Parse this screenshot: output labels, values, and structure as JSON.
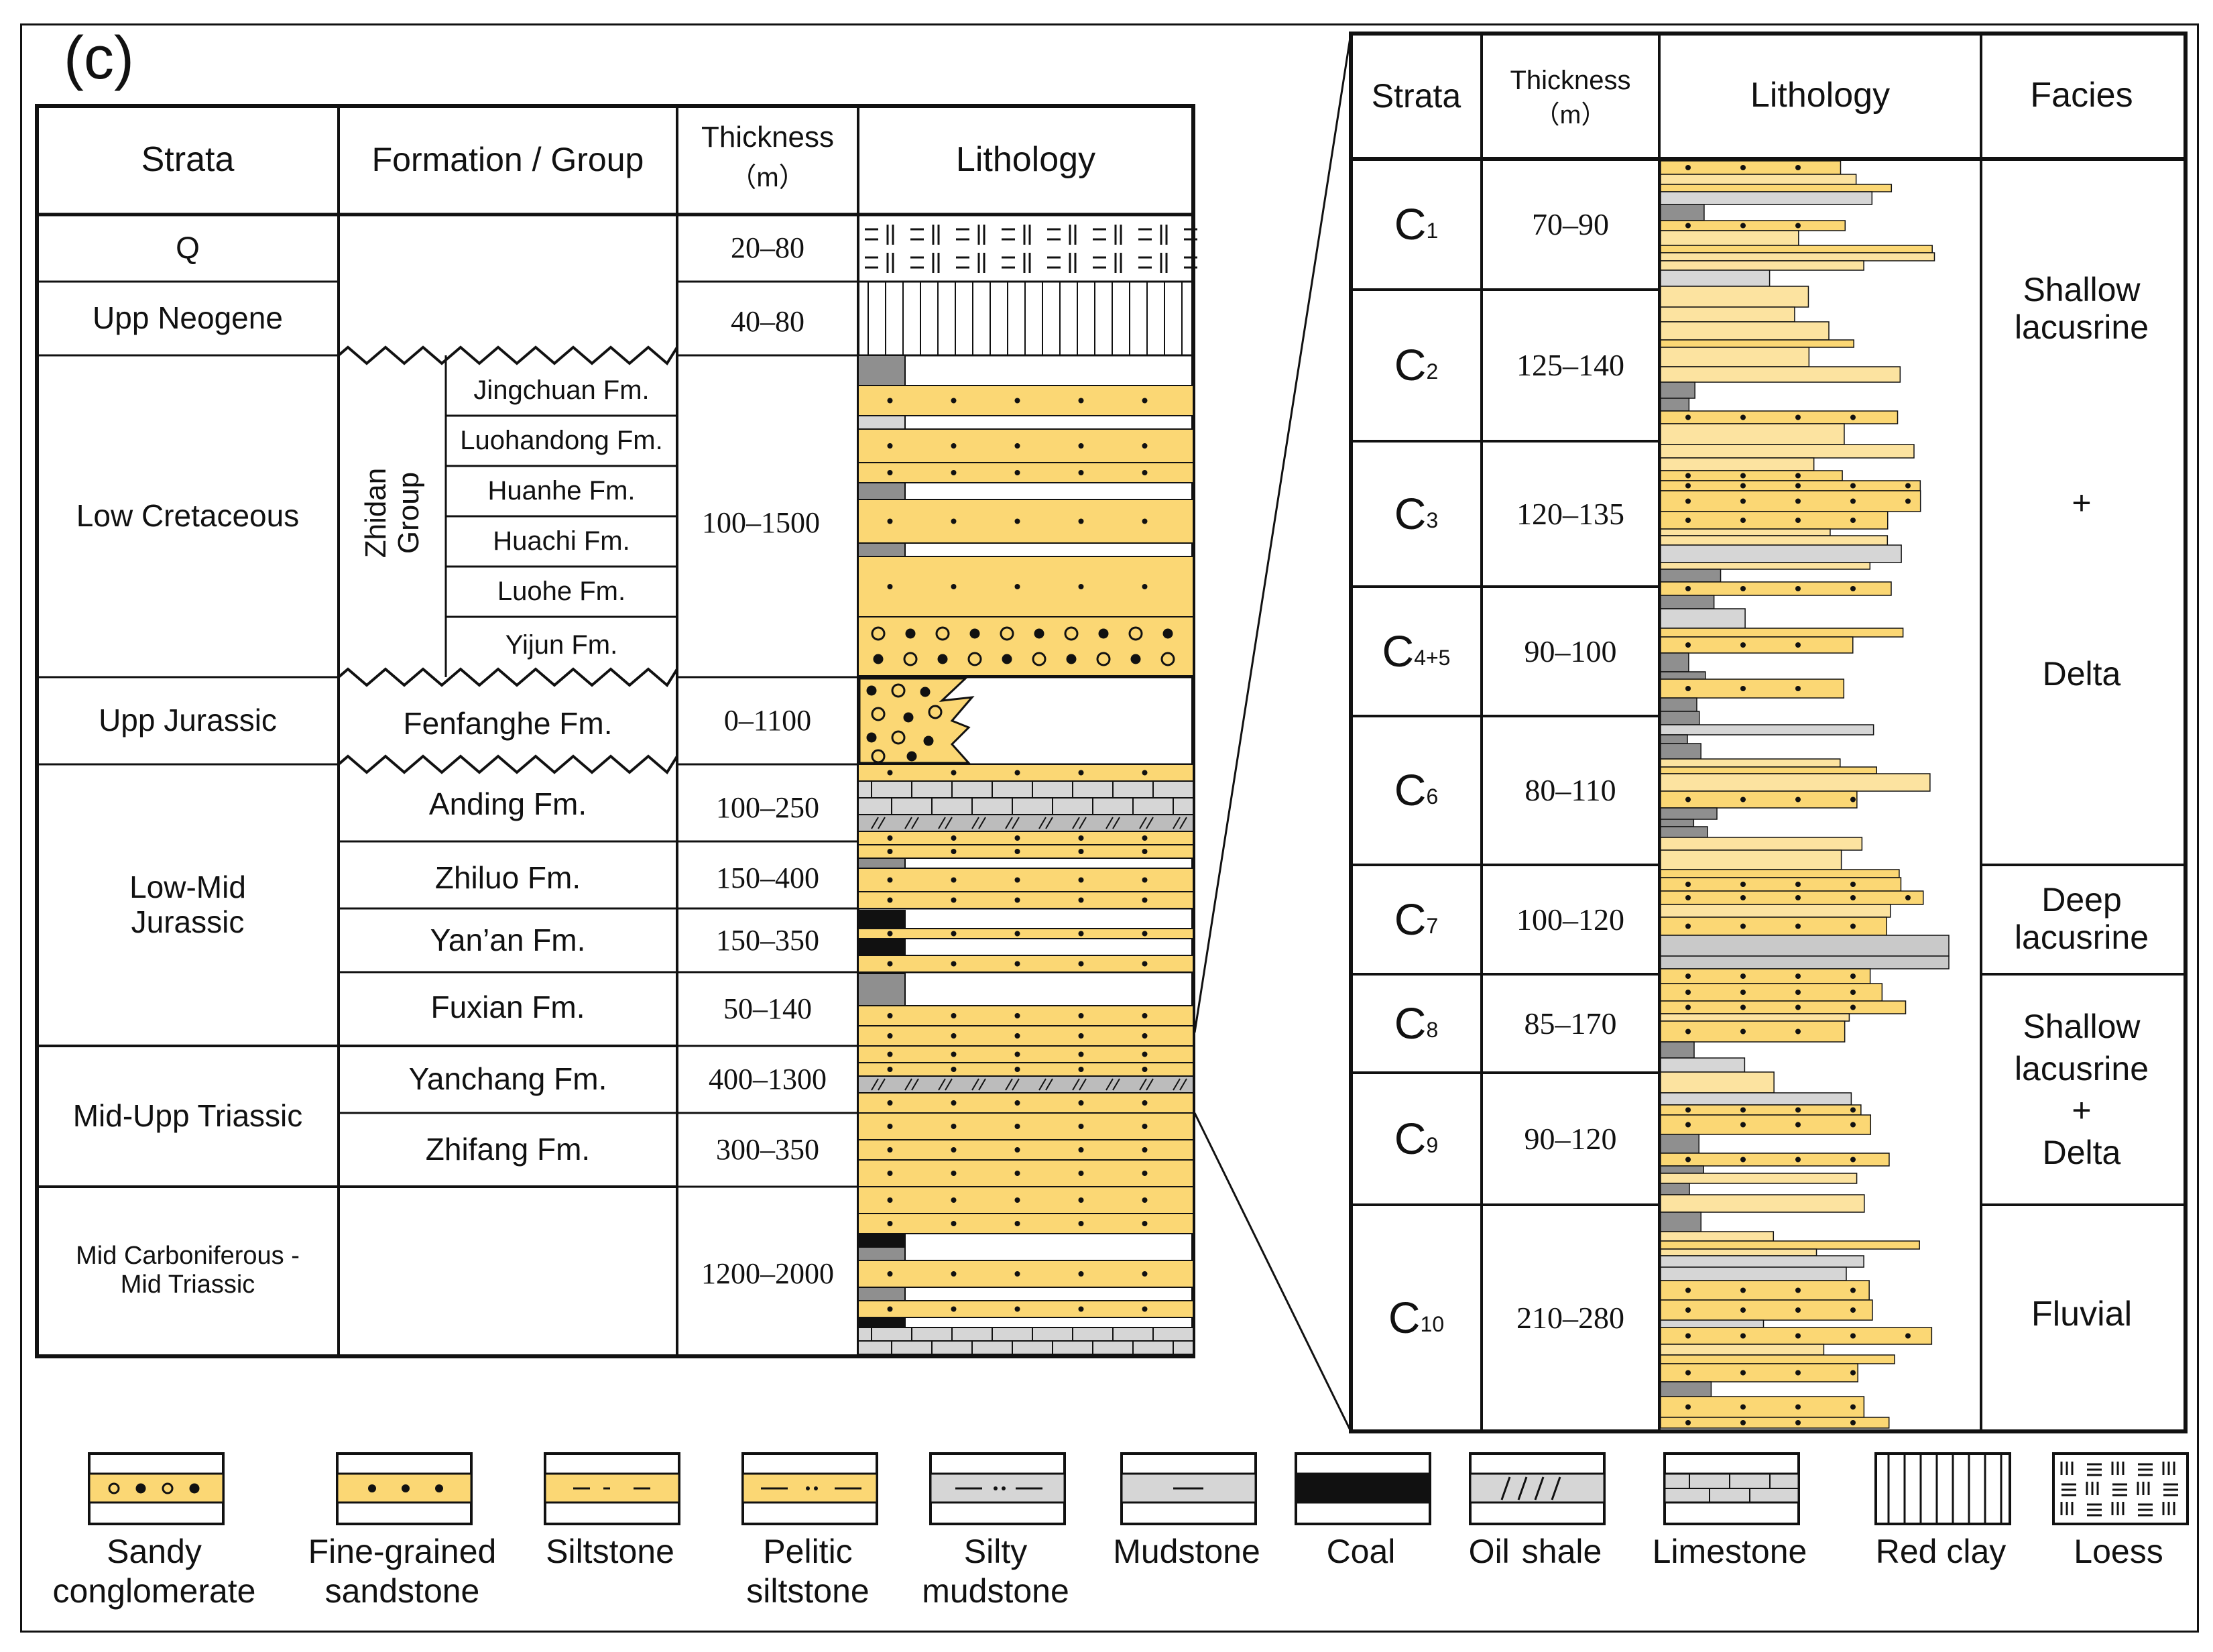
{
  "panel_label": "(c)",
  "left_table": {
    "headers": {
      "strata": "Strata",
      "formation": "Formation / Group",
      "thickness": "Thickness",
      "thickness_unit": "（m）",
      "lithology": "Lithology"
    },
    "strata": [
      "Q",
      "Upp Neogene",
      "Low Cretaceous",
      "Upp Jurassic",
      "Low-Mid Jurassic",
      "Mid-Upp Triassic",
      "Mid Carboniferous -Mid Triassic"
    ],
    "group_name": "Zhidan Group",
    "group_formations": [
      "Jingchuan Fm.",
      "Luohandong Fm.",
      "Huanhe Fm.",
      "Huachi Fm.",
      "Luohe Fm.",
      "Yijun Fm."
    ],
    "formations": [
      "Fenfanghe Fm.",
      "Anding Fm.",
      "Zhiluo Fm.",
      "Yan’an Fm.",
      "Fuxian Fm.",
      "Yanchang Fm.",
      "Zhifang Fm."
    ],
    "thickness": [
      "20–80",
      "40–80",
      "100–1500",
      "0–1100",
      "100–250",
      "150–400",
      "150–350",
      "50–140",
      "400–1300",
      "300–350",
      "1200–2000"
    ]
  },
  "right_table": {
    "headers": {
      "strata": "Strata",
      "thickness": "Thickness",
      "thickness_unit": "（m）",
      "lithology": "Lithology",
      "facies": "Facies"
    },
    "layers": [
      {
        "base": "C",
        "sub": "1",
        "thickness": "70–90"
      },
      {
        "base": "C",
        "sub": "2",
        "thickness": "125–140"
      },
      {
        "base": "C",
        "sub": "3",
        "thickness": "120–135"
      },
      {
        "base": "C",
        "sub": "4+5",
        "thickness": "90–100"
      },
      {
        "base": "C",
        "sub": "6",
        "thickness": "80–110"
      },
      {
        "base": "C",
        "sub": "7",
        "thickness": "100–120"
      },
      {
        "base": "C",
        "sub": "8",
        "thickness": "85–170"
      },
      {
        "base": "C",
        "sub": "9",
        "thickness": "90–120"
      },
      {
        "base": "C",
        "sub": "10",
        "thickness": "210–280"
      }
    ],
    "facies": {
      "f1": [
        "Shallow",
        "lacusrine",
        "+",
        "Delta"
      ],
      "f2": [
        "Deep",
        "lacusrine"
      ],
      "f3": [
        "Shallow",
        "lacusrine",
        "+",
        "Delta"
      ],
      "f4": [
        "Fluvial"
      ]
    }
  },
  "legend": [
    {
      "label": [
        "Sandy",
        "conglomerate"
      ],
      "pattern": "conglomerate"
    },
    {
      "label": [
        "Fine-grained",
        "sandstone"
      ],
      "pattern": "sandstone"
    },
    {
      "label": [
        "Siltstone"
      ],
      "pattern": "siltstone"
    },
    {
      "label": [
        "Pelitic",
        "siltstone"
      ],
      "pattern": "pelitic"
    },
    {
      "label": [
        "Silty",
        "mudstone"
      ],
      "pattern": "silty-mud"
    },
    {
      "label": [
        "Mudstone"
      ],
      "pattern": "mudstone"
    },
    {
      "label": [
        "Coal"
      ],
      "pattern": "coal"
    },
    {
      "label": [
        "Oil",
        "shale"
      ],
      "pattern": "oilshale"
    },
    {
      "label": [
        "Limestone"
      ],
      "pattern": "limestone"
    },
    {
      "label": [
        "Red clay"
      ],
      "pattern": "redclay"
    },
    {
      "label": [
        "Loess"
      ],
      "pattern": "loess"
    }
  ],
  "colors": {
    "sand": "#fbd774",
    "sand_light": "#fce3a0",
    "mud": "#d6d6d6",
    "dark_mud": "#8f8f8f",
    "coal": "#111111",
    "line": "#111111"
  }
}
